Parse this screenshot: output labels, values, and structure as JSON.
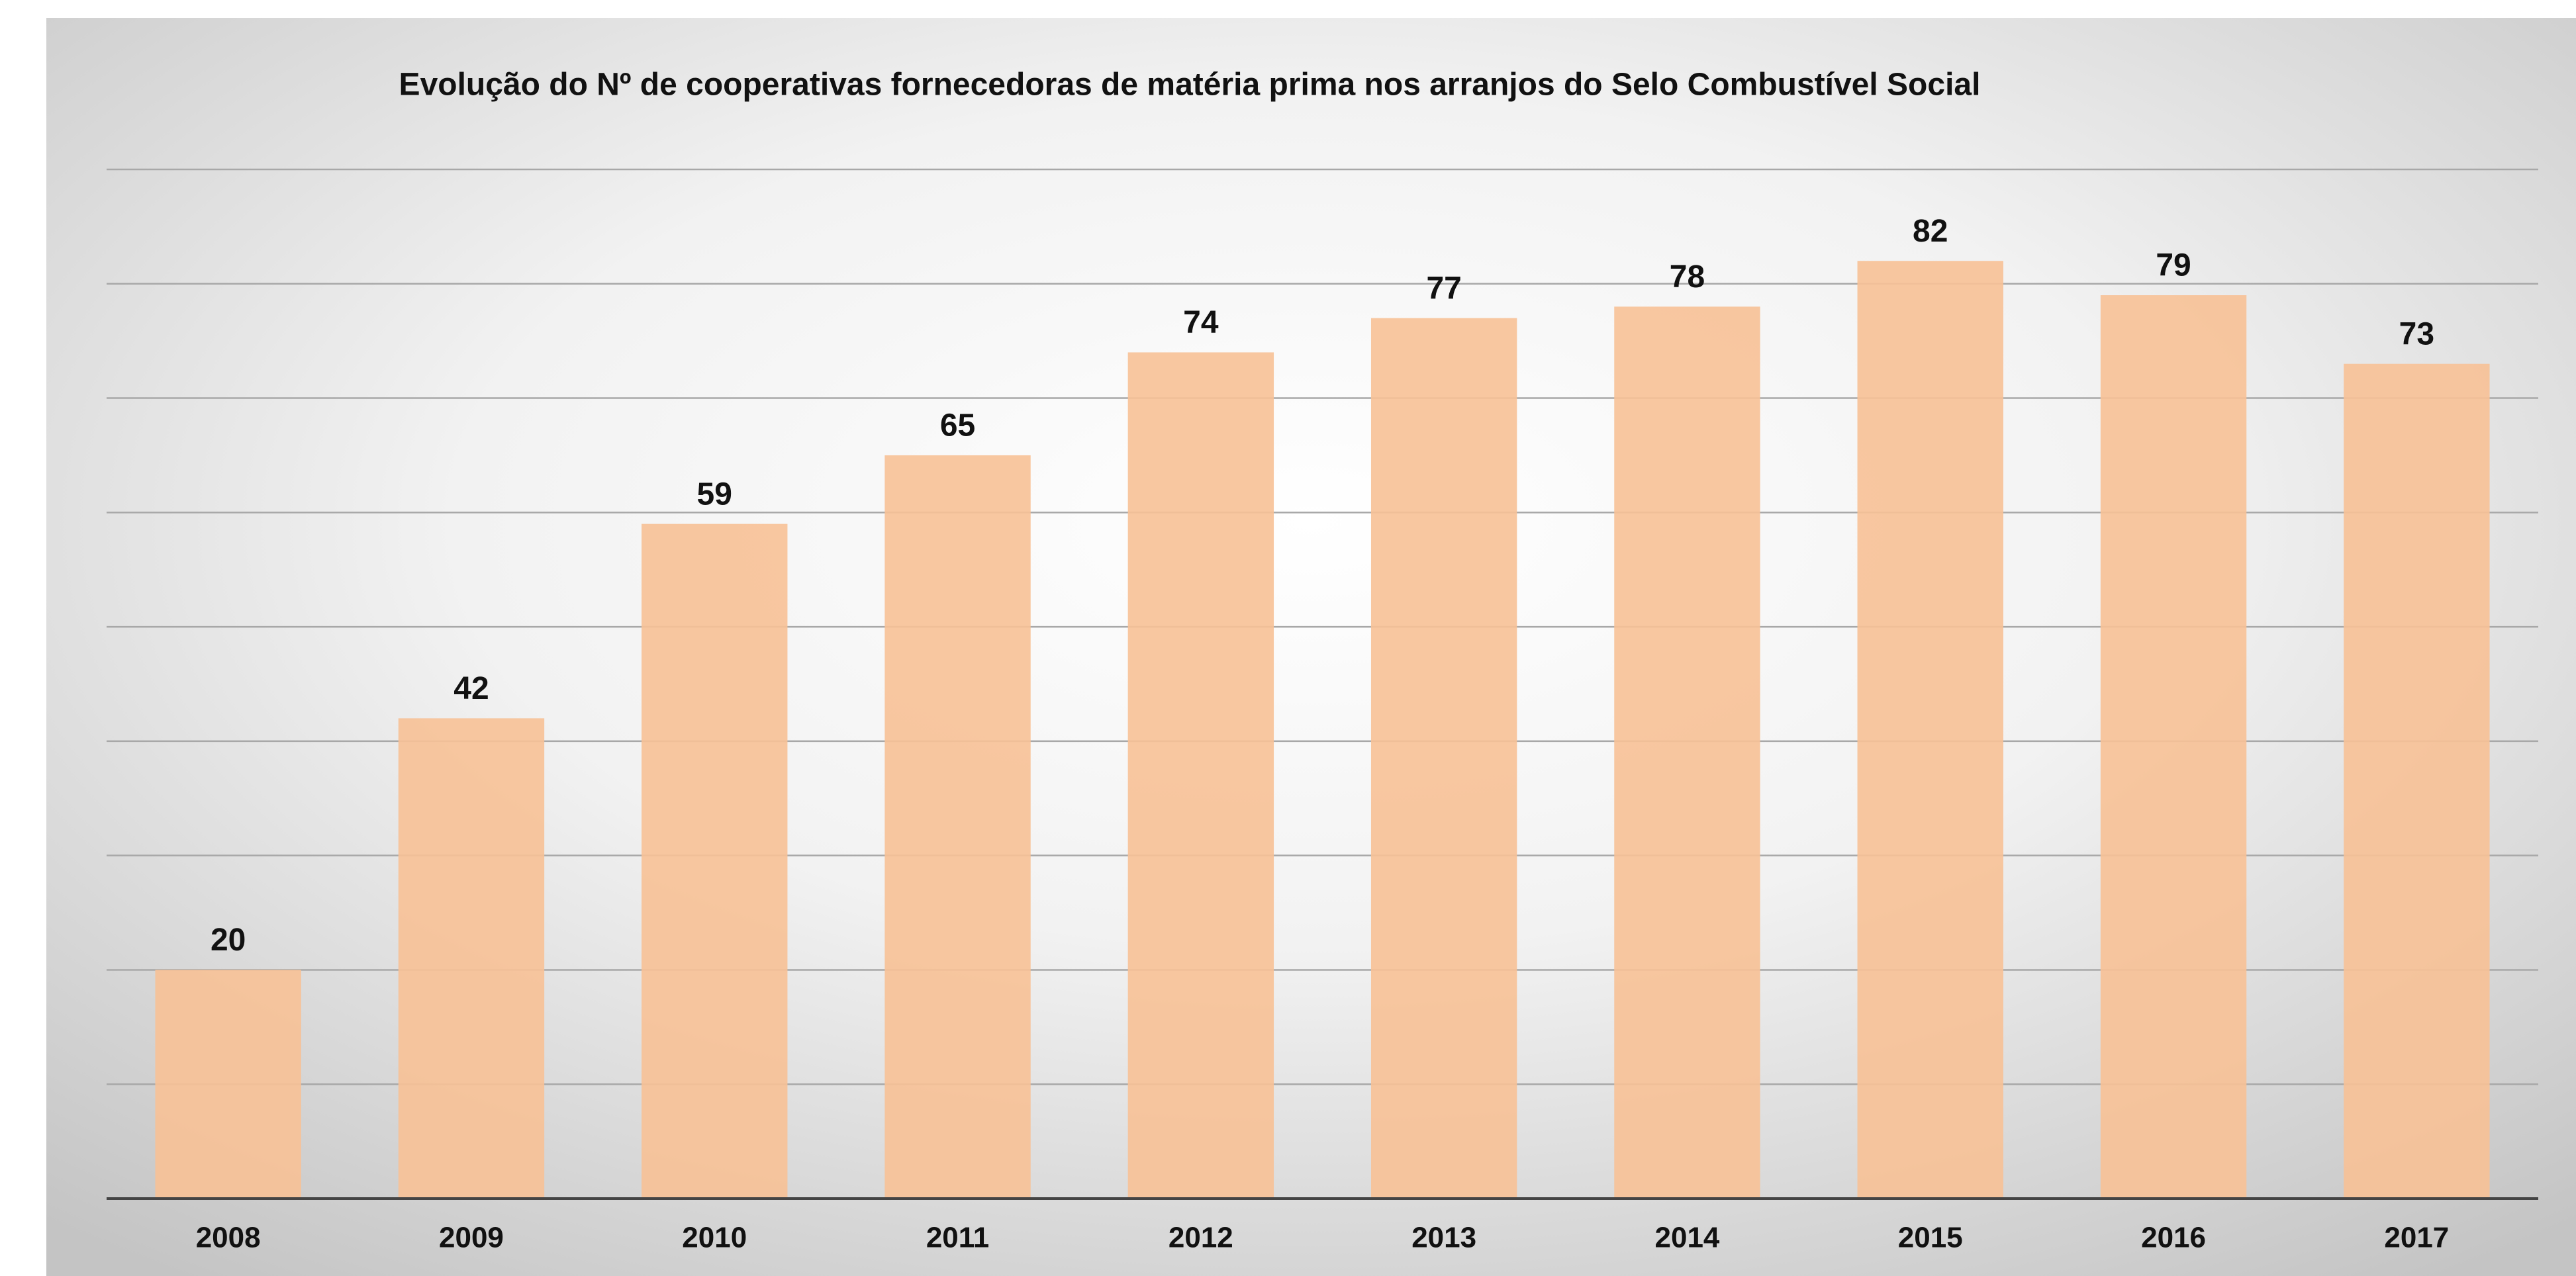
{
  "chart_data": {
    "type": "bar",
    "title": "Evolução do Nº de cooperativas fornecedoras de matéria prima nos arranjos do Selo Combustível Social",
    "categories": [
      "2008",
      "2009",
      "2010",
      "2011",
      "2012",
      "2013",
      "2014",
      "2015",
      "2016",
      "2017"
    ],
    "values": [
      20,
      42,
      59,
      65,
      74,
      77,
      78,
      82,
      79,
      73
    ],
    "color": "#f7c196",
    "ylim": [
      0,
      90
    ],
    "yticks": [
      0,
      10,
      20,
      30,
      40,
      50,
      60,
      70,
      80,
      90
    ],
    "grid": true
  }
}
